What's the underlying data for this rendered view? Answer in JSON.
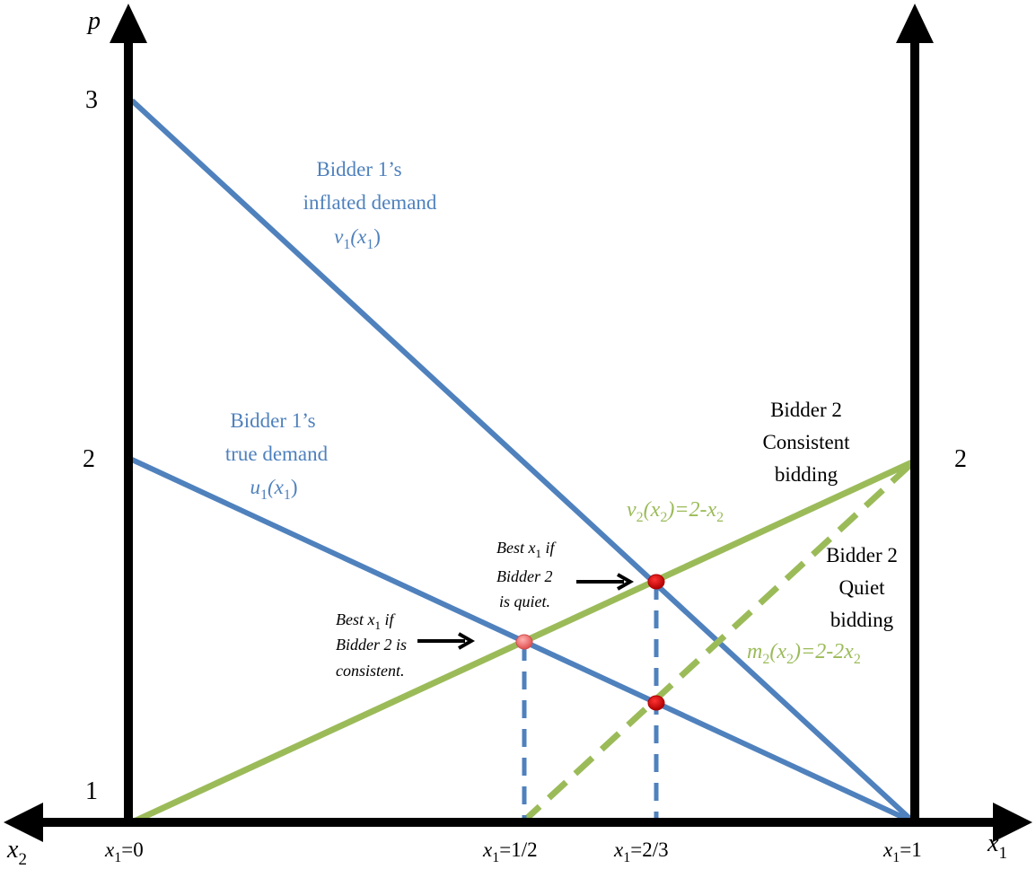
{
  "axis": {
    "p_label": "p",
    "x1_label": "x",
    "x1_label_sub": "1",
    "x2_label": "x",
    "x2_label_sub": "2",
    "left_ticks": [
      "3",
      "2",
      "1"
    ],
    "right_tick": "2",
    "bottom_ticks": [
      {
        "pre": "x",
        "sub": "1",
        "post": "=0"
      },
      {
        "pre": "x",
        "sub": "1",
        "post": "=1/2"
      },
      {
        "pre": "x",
        "sub": "1",
        "post": "=2/3"
      },
      {
        "pre": "x",
        "sub": "1",
        "post": "=1"
      }
    ]
  },
  "labels": {
    "inflated": {
      "line1": "Bidder 1’s",
      "line2": "inflated demand",
      "fn": "v",
      "fn_sub": "1",
      "arg_open": "(x",
      "arg_sub": "1",
      "arg_close": ")"
    },
    "true_demand": {
      "line1": "Bidder 1’s",
      "line2": "true demand",
      "fn": "u",
      "fn_sub": "1",
      "arg_open": "(x",
      "arg_sub": "1",
      "arg_close": ")"
    },
    "consistent": {
      "line1": "Bidder 2",
      "line2": "Consistent",
      "line3": "bidding"
    },
    "quiet": {
      "line1": "Bidder 2",
      "line2": "Quiet",
      "line3": "bidding"
    },
    "v2": {
      "fn": "v",
      "sub": "2",
      "mid": "(x",
      "sub2": "2",
      "rest": ")=2-x",
      "sub3": "2"
    },
    "m2": {
      "fn": "m",
      "sub": "2",
      "mid": "(x",
      "sub2": "2",
      "rest": ")=2-2x",
      "sub3": "2"
    },
    "best_quiet": {
      "l1_pre": "Best x",
      "l1_sub": "1",
      "l1_post": " if",
      "l2": "Bidder 2",
      "l3": "is quiet."
    },
    "best_consistent": {
      "l1_pre": "Best x",
      "l1_sub": "1",
      "l1_post": " if",
      "l2": "Bidder 2 is",
      "l3": "consistent."
    }
  },
  "colors": {
    "axis": "#000000",
    "blue": "#4f81bd",
    "green": "#9bbb59",
    "point_red": "#c00000",
    "point_pink": "#e46c6c"
  }
}
